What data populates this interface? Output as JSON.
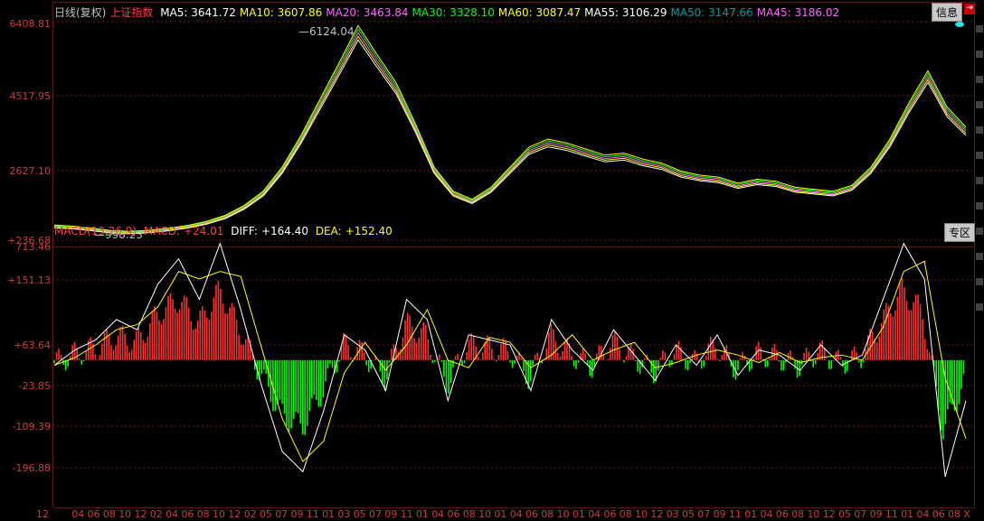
{
  "price_panel": {
    "legend": {
      "period": "日线(复权)",
      "symbol": "上证指数",
      "items": [
        {
          "label": "MA5:",
          "value": "3641.72",
          "color": "#ffffff"
        },
        {
          "label": "MA10:",
          "value": "3607.86",
          "color": "#ffff00"
        },
        {
          "label": "MA20:",
          "value": "3463.84",
          "color": "#ff66ff"
        },
        {
          "label": "MA30:",
          "value": "3328.10",
          "color": "#00ff00"
        },
        {
          "label": "MA60:",
          "value": "3087.47",
          "color": "#ffff00"
        },
        {
          "label": "MA55:",
          "value": "3106.29",
          "color": "#ffffff"
        },
        {
          "label": "MA50:",
          "value": "3147.66",
          "color": "#00a0a0"
        },
        {
          "label": "MA45:",
          "value": "3186.02",
          "color": "#ff66ff"
        }
      ]
    },
    "y_labels": [
      "6408.81",
      "4517.95",
      "2627.10",
      "713.46"
    ],
    "high_label": "6124.04",
    "low_label": "998.23",
    "info_button": "信息",
    "up_arrow_color": "#33dddd"
  },
  "macd_panel": {
    "legend": {
      "name": "MACD(13,26,9)",
      "macd_label": "MACD:",
      "macd_value": "+24.01",
      "diff_label": "DIFF:",
      "diff_value": "+164.40",
      "dea_label": "DEA:",
      "dea_value": "+152.40"
    },
    "y_labels": [
      "+236.68",
      "+151.13",
      "+63.64",
      "-23.85",
      "-109.39",
      "-196.88"
    ],
    "zone_button": "专区"
  },
  "x_axis_labels": [
    "12",
    "04",
    "06",
    "08",
    "10",
    "12",
    "02",
    "04",
    "06",
    "08",
    "10",
    "12",
    "02",
    "05",
    "07",
    "09",
    "11",
    "01",
    "03",
    "05",
    "07",
    "09",
    "11",
    "01",
    "04",
    "06",
    "08",
    "10",
    "01",
    "04",
    "06",
    "08",
    "10",
    "01",
    "04",
    "06",
    "08",
    "10",
    "12",
    "03",
    "05",
    "07",
    "09",
    "11",
    "01",
    "04",
    "06",
    "08",
    "10",
    "12",
    "05",
    "07",
    "09",
    "11",
    "01",
    "04",
    "06",
    "08",
    "X"
  ],
  "colors": {
    "up_bar": "#ff3030",
    "down_bar": "#00ff00",
    "grid": "#7a1a1a",
    "axis_text": "#d23c3c"
  },
  "chart_data": {
    "type": "line",
    "title": "",
    "price_series_close": [
      1160,
      1130,
      1080,
      1020,
      1000,
      1030,
      1080,
      1150,
      1250,
      1400,
      1650,
      2000,
      2600,
      3400,
      4300,
      5200,
      6124,
      5400,
      4700,
      3700,
      2600,
      2000,
      1800,
      2100,
      2600,
      3100,
      3300,
      3200,
      3050,
      2900,
      2950,
      2800,
      2700,
      2500,
      2400,
      2350,
      2200,
      2300,
      2250,
      2100,
      2050,
      2000,
      2150,
      2600,
      3300,
      4200,
      5000,
      4100,
      3600
    ],
    "macd_series_diff": [
      -10,
      20,
      40,
      80,
      60,
      150,
      200,
      120,
      230,
      100,
      -50,
      -180,
      -220,
      -100,
      50,
      20,
      -60,
      120,
      80,
      -80,
      50,
      40,
      30,
      -60,
      80,
      20,
      -20,
      60,
      10,
      -40,
      30,
      -10,
      50,
      -30,
      20,
      10,
      -20,
      30,
      -10,
      10,
      120,
      230,
      160,
      -230,
      -80
    ]
  }
}
